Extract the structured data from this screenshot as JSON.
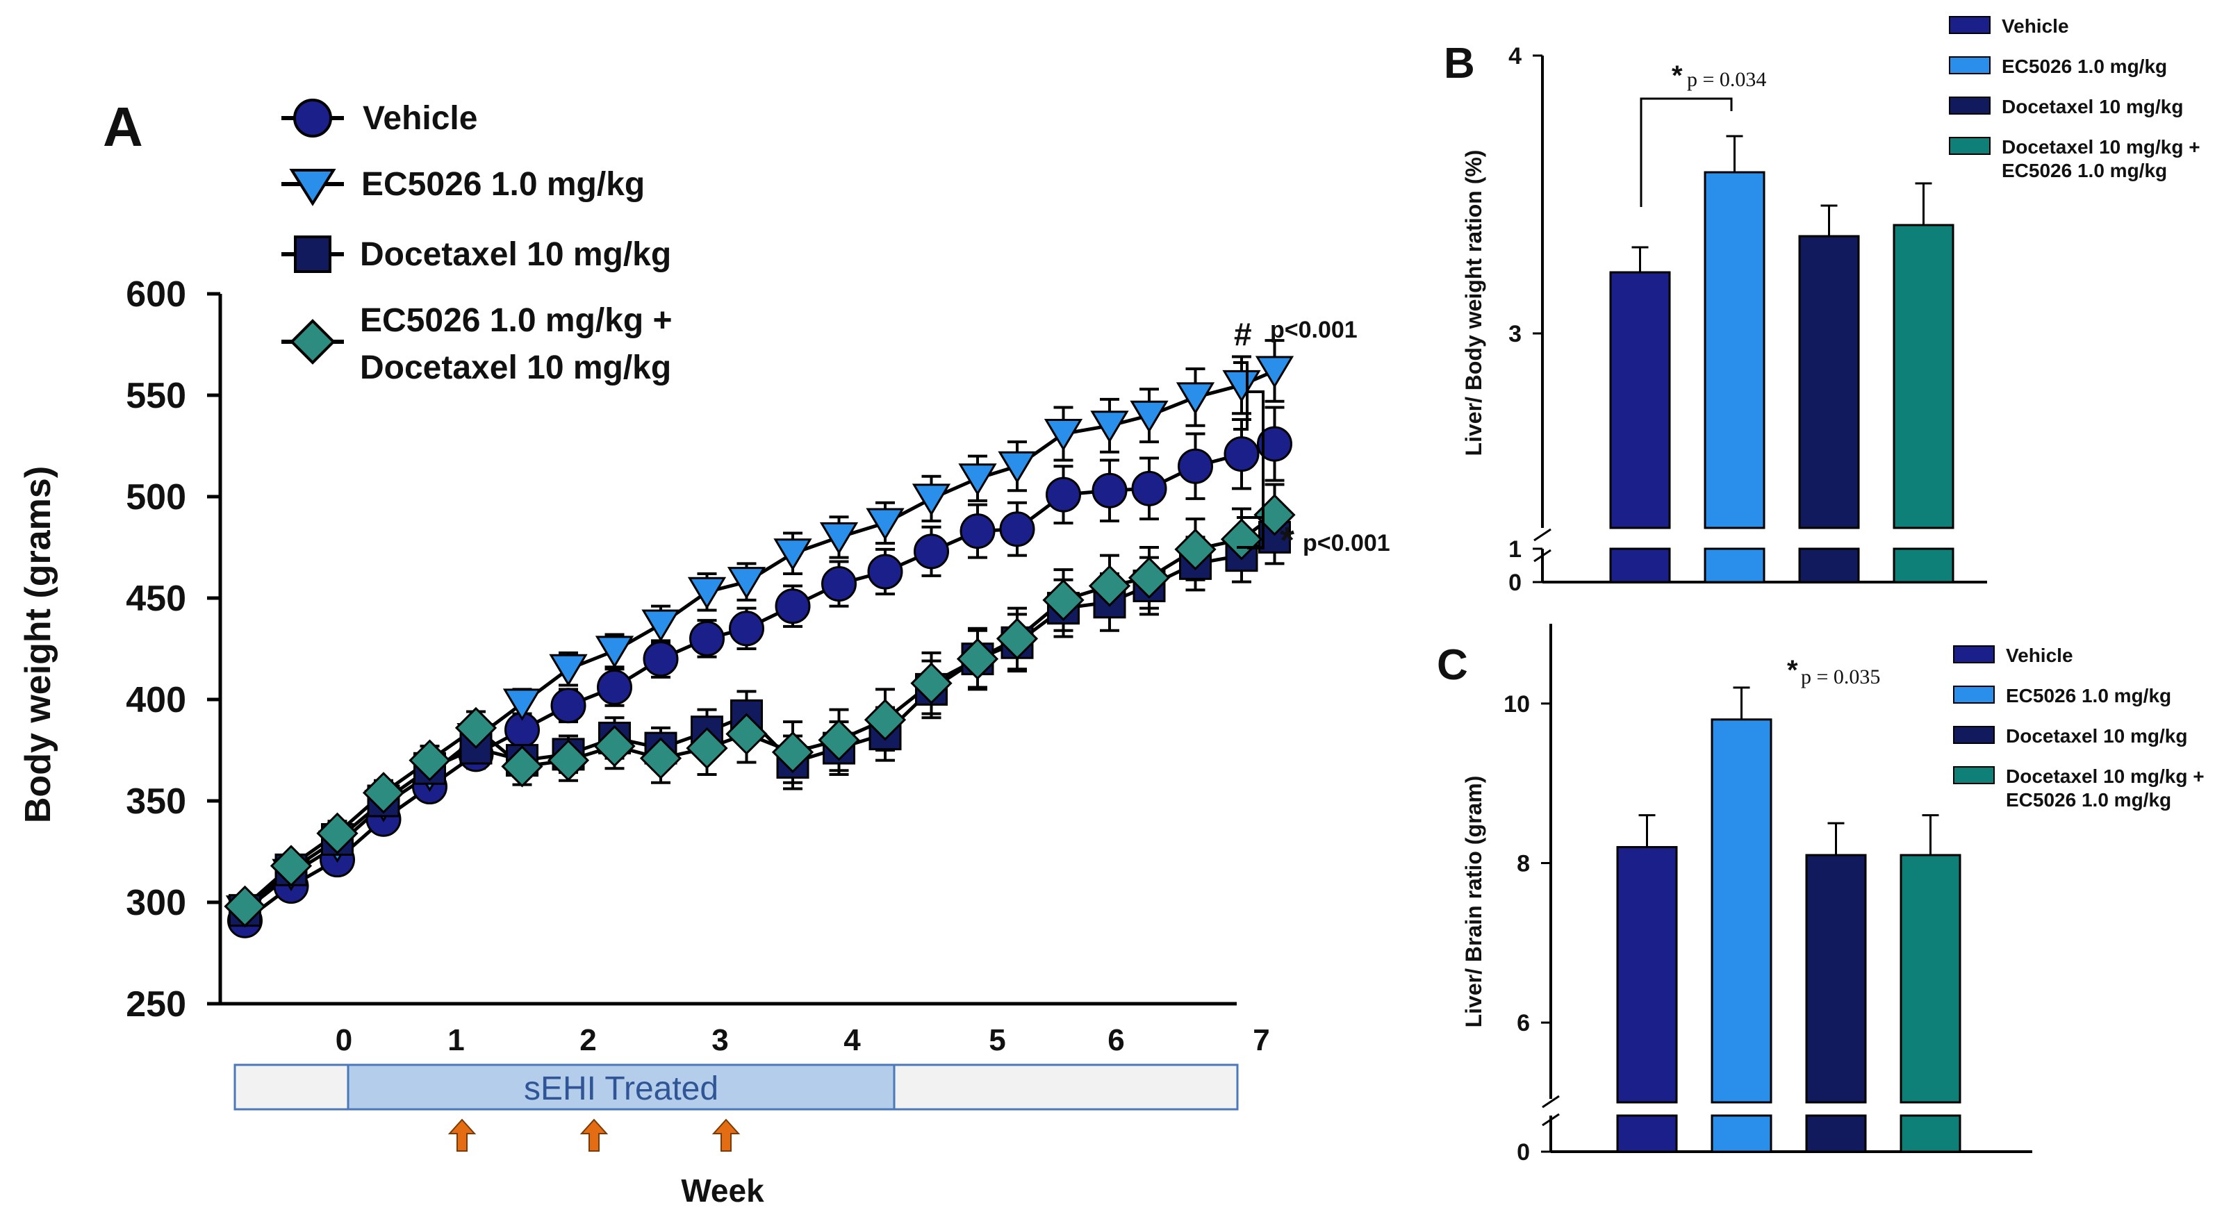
{
  "colors": {
    "vehicle": "#1a1f8a",
    "ec5026": "#2a8fea",
    "docetaxel": "#101a5c",
    "combo": "#0f8078",
    "combo_marker": "#2d8c80",
    "arrow": "#e46c12",
    "band_fill": "#b4cdeb",
    "band_text": "#2f5597"
  },
  "chart_data": [
    {
      "panel": "A",
      "type": "line",
      "panel_label": "A",
      "ylabel": "Body weight (grams)",
      "xlabel": "Week",
      "ylim": [
        250,
        600
      ],
      "yticks": [
        "250",
        "300",
        "350",
        "400",
        "450",
        "500",
        "550",
        "600"
      ],
      "xtick_labels": [
        "0",
        "1",
        "2",
        "3",
        "4",
        "5",
        "6",
        "7"
      ],
      "xtick_positions": [
        0,
        0.85,
        1.85,
        2.85,
        3.85,
        4.95,
        5.85,
        6.95
      ],
      "x": [
        -0.75,
        -0.4,
        -0.05,
        0.3,
        0.65,
        1.0,
        1.35,
        1.7,
        2.05,
        2.4,
        2.75,
        3.05,
        3.4,
        3.75,
        4.1,
        4.45,
        4.8,
        5.1,
        5.45,
        5.8,
        6.1,
        6.45,
        6.8,
        7.05
      ],
      "series": [
        {
          "name": "Vehicle",
          "marker": "circle",
          "color_key": "vehicle",
          "values": [
            291,
            308,
            321,
            341,
            357,
            373,
            385,
            397,
            406,
            420,
            430,
            435,
            446,
            457,
            463,
            473,
            483,
            484,
            501,
            503,
            504,
            515,
            521,
            526
          ],
          "err": [
            5,
            5,
            6,
            6,
            6,
            7,
            8,
            8,
            9,
            9,
            9,
            10,
            10,
            11,
            11,
            12,
            13,
            13,
            14,
            15,
            15,
            16,
            17,
            18
          ]
        },
        {
          "name": "EC5026 1.0 mg/kg",
          "marker": "triangle-down",
          "color_key": "ec5026",
          "values": [
            296,
            314,
            328,
            348,
            363,
            381,
            398,
            415,
            424,
            437,
            453,
            458,
            472,
            480,
            487,
            499,
            509,
            515,
            531,
            535,
            540,
            549,
            555,
            562
          ],
          "err": [
            5,
            5,
            6,
            6,
            6,
            7,
            7,
            8,
            8,
            9,
            9,
            9,
            10,
            10,
            10,
            11,
            11,
            12,
            13,
            13,
            13,
            14,
            14,
            15
          ]
        },
        {
          "name": "Docetaxel 10 mg/kg",
          "marker": "square",
          "color_key": "docetaxel",
          "values": [
            296,
            316,
            331,
            350,
            366,
            376,
            370,
            373,
            381,
            376,
            384,
            392,
            369,
            376,
            383,
            405,
            420,
            428,
            445,
            448,
            456,
            467,
            471,
            480
          ],
          "err": [
            5,
            5,
            6,
            6,
            7,
            8,
            8,
            9,
            10,
            10,
            11,
            12,
            13,
            13,
            13,
            14,
            14,
            14,
            14,
            14,
            14,
            13,
            13,
            13
          ]
        },
        {
          "name": "EC5026 1.0 mg/kg + Docetaxel 10 mg/kg",
          "marker": "diamond",
          "color_key": "combo_marker",
          "values": [
            298,
            318,
            334,
            354,
            370,
            386,
            367,
            370,
            377,
            371,
            376,
            383,
            374,
            380,
            390,
            408,
            420,
            430,
            449,
            456,
            460,
            474,
            479,
            491
          ],
          "err": [
            5,
            5,
            6,
            6,
            7,
            8,
            9,
            10,
            11,
            12,
            13,
            14,
            15,
            15,
            15,
            15,
            15,
            15,
            15,
            15,
            15,
            15,
            15,
            15
          ]
        }
      ],
      "legend": [
        {
          "line1": "Vehicle",
          "line2": ""
        },
        {
          "line1": "EC5026 1.0 mg/kg",
          "line2": ""
        },
        {
          "line1": "Docetaxel 10 mg/kg",
          "line2": ""
        },
        {
          "line1": "EC5026 1.0 mg/kg +",
          "line2": "Docetaxel 10 mg/kg"
        }
      ],
      "legend_placement": "top-left",
      "annotations": {
        "hash_symbol": "#",
        "hash_text": "p<0.001",
        "star_symbol": "*",
        "star_text": "p<0.001"
      },
      "treatment_band": {
        "label": "sEHI Treated",
        "start_week": 0,
        "end_week": 4.5
      },
      "dose_arrows_weeks": [
        1.0,
        2.0,
        3.0
      ]
    },
    {
      "panel": "B",
      "type": "bar",
      "panel_label": "B",
      "ylabel": "Liver/ Body weight ration (%)",
      "categories": [
        "Vehicle",
        "EC5026 1.0 mg/kg",
        "Docetaxel 10 mg/kg",
        "Docetaxel 10 mg/kg + EC5026 1.0 mg/kg"
      ],
      "values": [
        3.22,
        3.58,
        3.35,
        3.39
      ],
      "err": [
        0.09,
        0.13,
        0.11,
        0.15
      ],
      "ylim_upper": [
        2.3,
        4.0
      ],
      "ylim_lower": [
        0,
        1
      ],
      "ytick_labels_upper": [
        "3",
        "4"
      ],
      "ytick_labels_lower": [
        "0",
        "1"
      ],
      "legend": [
        {
          "line1": "Vehicle",
          "line2": ""
        },
        {
          "line1": "EC5026 1.0 mg/kg",
          "line2": ""
        },
        {
          "line1": "Docetaxel 10 mg/kg",
          "line2": ""
        },
        {
          "line1": "Docetaxel 10 mg/kg +",
          "line2": "EC5026 1.0 mg/kg"
        }
      ],
      "legend_placement": "top-right",
      "annotation_star": "*",
      "annotation_text": "p = 0.034"
    },
    {
      "panel": "C",
      "type": "bar",
      "panel_label": "C",
      "ylabel": "Liver/ Brain ratio (gram)",
      "categories": [
        "Vehicle",
        "EC5026 1.0 mg/kg",
        "Docetaxel 10 mg/kg",
        "Docetaxel 10 mg/kg + EC5026 1.0 mg/kg"
      ],
      "values": [
        8.2,
        9.8,
        8.1,
        8.1
      ],
      "err": [
        0.4,
        0.4,
        0.4,
        0.5
      ],
      "ylim_upper": [
        5.0,
        11.0
      ],
      "ytick_labels_upper": [
        "6",
        "8",
        "10"
      ],
      "ytick_labels_lower": [
        "0"
      ],
      "legend": [
        {
          "line1": "Vehicle",
          "line2": ""
        },
        {
          "line1": "EC5026 1.0 mg/kg",
          "line2": ""
        },
        {
          "line1": "Docetaxel 10 mg/kg",
          "line2": ""
        },
        {
          "line1": "Docetaxel 10 mg/kg +",
          "line2": "EC5026 1.0 mg/kg"
        }
      ],
      "legend_placement": "top-right",
      "annotation_star": "*",
      "annotation_text": "p = 0.035"
    }
  ]
}
